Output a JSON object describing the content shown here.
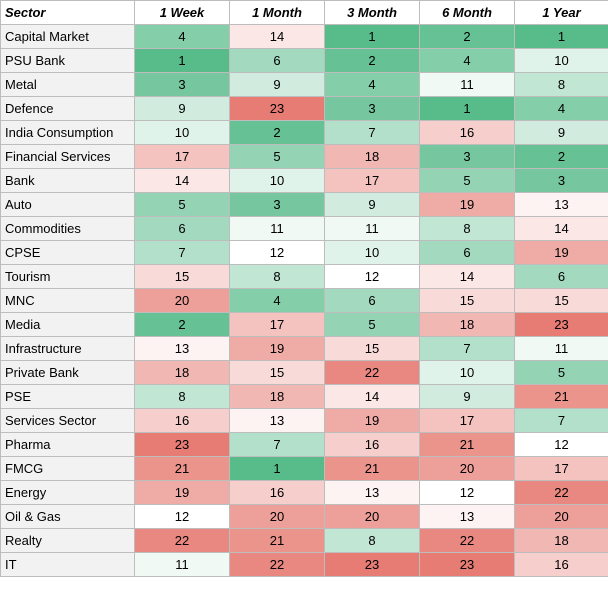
{
  "chart_data": {
    "type": "heatmap",
    "header": [
      "Sector",
      "1 Week",
      "1 Month",
      "3 Month",
      "6 Month",
      "1 Year"
    ],
    "rows": [
      {
        "sector": "Capital Market",
        "values": [
          4,
          14,
          1,
          2,
          1
        ]
      },
      {
        "sector": "PSU Bank",
        "values": [
          1,
          6,
          2,
          4,
          10
        ]
      },
      {
        "sector": "Metal",
        "values": [
          3,
          9,
          4,
          11,
          8
        ]
      },
      {
        "sector": "Defence",
        "values": [
          9,
          23,
          3,
          1,
          4
        ]
      },
      {
        "sector": "India Consumption",
        "values": [
          10,
          2,
          7,
          16,
          9
        ]
      },
      {
        "sector": "Financial Services",
        "values": [
          17,
          5,
          18,
          3,
          2
        ]
      },
      {
        "sector": "Bank",
        "values": [
          14,
          10,
          17,
          5,
          3
        ]
      },
      {
        "sector": "Auto",
        "values": [
          5,
          3,
          9,
          19,
          13
        ]
      },
      {
        "sector": "Commodities",
        "values": [
          6,
          11,
          11,
          8,
          14
        ]
      },
      {
        "sector": "CPSE",
        "values": [
          7,
          12,
          10,
          6,
          19
        ]
      },
      {
        "sector": "Tourism",
        "values": [
          15,
          8,
          12,
          14,
          6
        ]
      },
      {
        "sector": "MNC",
        "values": [
          20,
          4,
          6,
          15,
          15
        ]
      },
      {
        "sector": "Media",
        "values": [
          2,
          17,
          5,
          18,
          23
        ]
      },
      {
        "sector": "Infrastructure",
        "values": [
          13,
          19,
          15,
          7,
          11
        ]
      },
      {
        "sector": "Private Bank",
        "values": [
          18,
          15,
          22,
          10,
          5
        ]
      },
      {
        "sector": "PSE",
        "values": [
          8,
          18,
          14,
          9,
          21
        ]
      },
      {
        "sector": "Services Sector",
        "values": [
          16,
          13,
          19,
          17,
          7
        ]
      },
      {
        "sector": "Pharma",
        "values": [
          23,
          7,
          16,
          21,
          12
        ]
      },
      {
        "sector": "FMCG",
        "values": [
          21,
          1,
          21,
          20,
          17
        ]
      },
      {
        "sector": "Energy",
        "values": [
          19,
          16,
          13,
          12,
          22
        ]
      },
      {
        "sector": "Oil & Gas",
        "values": [
          12,
          20,
          20,
          13,
          20
        ]
      },
      {
        "sector": "Realty",
        "values": [
          22,
          21,
          8,
          22,
          18
        ]
      },
      {
        "sector": "IT",
        "values": [
          11,
          22,
          23,
          23,
          16
        ]
      }
    ],
    "color_scale": {
      "min": 1,
      "mid": 12,
      "max": 23,
      "low_color": "#57bb8a",
      "mid_color": "#ffffff",
      "high_color": "#e67c73"
    }
  }
}
